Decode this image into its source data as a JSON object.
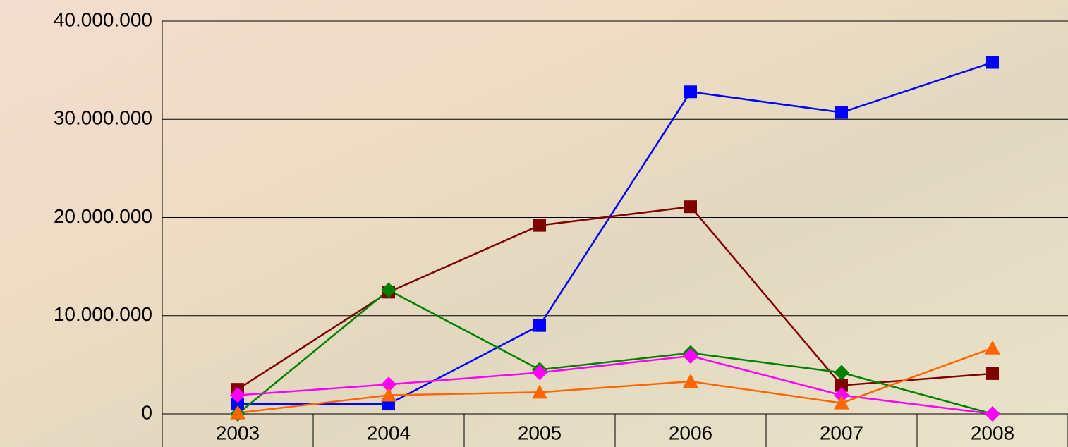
{
  "chart_data": {
    "type": "line",
    "categories": [
      "2003",
      "2004",
      "2005",
      "2006",
      "2007",
      "2008"
    ],
    "series": [
      {
        "color": "#0000ff",
        "marker": "square",
        "values": [
          1000000,
          1000000,
          9000000,
          32800000,
          30700000,
          35800000
        ]
      },
      {
        "color": "#800000",
        "marker": "square",
        "values": [
          2500000,
          12400000,
          19200000,
          21100000,
          2900000,
          4100000
        ]
      },
      {
        "color": "#008000",
        "marker": "diamond",
        "values": [
          0,
          12600000,
          4500000,
          6200000,
          4200000,
          0
        ]
      },
      {
        "color": "#ff00ff",
        "marker": "diamond",
        "values": [
          1900000,
          3000000,
          4200000,
          5900000,
          1900000,
          0
        ]
      },
      {
        "color": "#ff6600",
        "marker": "triangle",
        "values": [
          100000,
          1900000,
          2200000,
          3300000,
          1100000,
          6700000
        ]
      }
    ],
    "ylim": [
      0,
      40000000
    ],
    "yticks": [
      0,
      {
        "value": 10000000,
        "label": "10.000.000"
      },
      {
        "value": 20000000,
        "label": "20.000.000"
      },
      {
        "value": 30000000,
        "label": "30.000.000"
      },
      {
        "value": 40000000,
        "label": "40.000.000"
      }
    ],
    "grid": true
  }
}
